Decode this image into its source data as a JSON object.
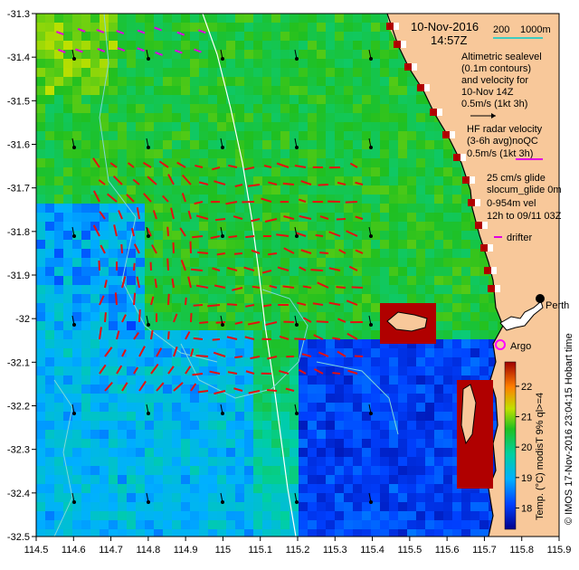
{
  "map": {
    "title_date": "10-Nov-2016",
    "title_time": "14:57Z",
    "scale_label": "200",
    "scale_label2": "1000m",
    "legend_sealevel": [
      "Altimetric sealevel",
      "(0.1m contours)",
      "and velocity for",
      "10-Nov 14Z"
    ],
    "legend_vel_scale": "0.5m/s (1kt 3h)",
    "legend_hf": [
      "HF radar velocity",
      "(3-6h avg)noQC"
    ],
    "legend_hf_scale": "0.5m/s (1kt 3h)",
    "legend_glide": [
      "25 cm/s glide",
      "slocum_glide 0m",
      "0-954m vel",
      "12h to 09/11 03Z"
    ],
    "legend_drifter": "drifter",
    "place_perth": "Perth",
    "place_argo": "Argo",
    "credit": "© IMOS 17-Nov-2016 23:04:15 Hobart time",
    "colorbar_label": "Temp. (°C) modisT 9% ql>=4",
    "colorbar_ticks": [
      "22",
      "21",
      "20",
      "19",
      "18"
    ],
    "colorbar_min": 17.3,
    "colorbar_max": 22.8,
    "lon_ticks": [
      "114.5",
      "114.6",
      "114.7",
      "114.8",
      "114.9",
      "115",
      "115.1",
      "115.2",
      "115.3",
      "115.4",
      "115.5",
      "115.6",
      "115.7",
      "115.8",
      "115.9"
    ],
    "lat_ticks": [
      "-31.3",
      "-31.4",
      "-31.5",
      "-31.6",
      "-31.7",
      "-31.8",
      "-31.9",
      "-32",
      "-32.1",
      "-32.2",
      "-32.3",
      "-32.4",
      "-32.5"
    ],
    "lon_range": [
      114.5,
      115.9
    ],
    "lat_range": [
      -32.5,
      -31.3
    ],
    "colors": {
      "land": "#f8c89a",
      "hf_arrow": "#e31010",
      "drifter": "#e000e0",
      "contour": "#7fd8d8",
      "coast": "#000000",
      "depth_line": "#ffffff"
    }
  }
}
